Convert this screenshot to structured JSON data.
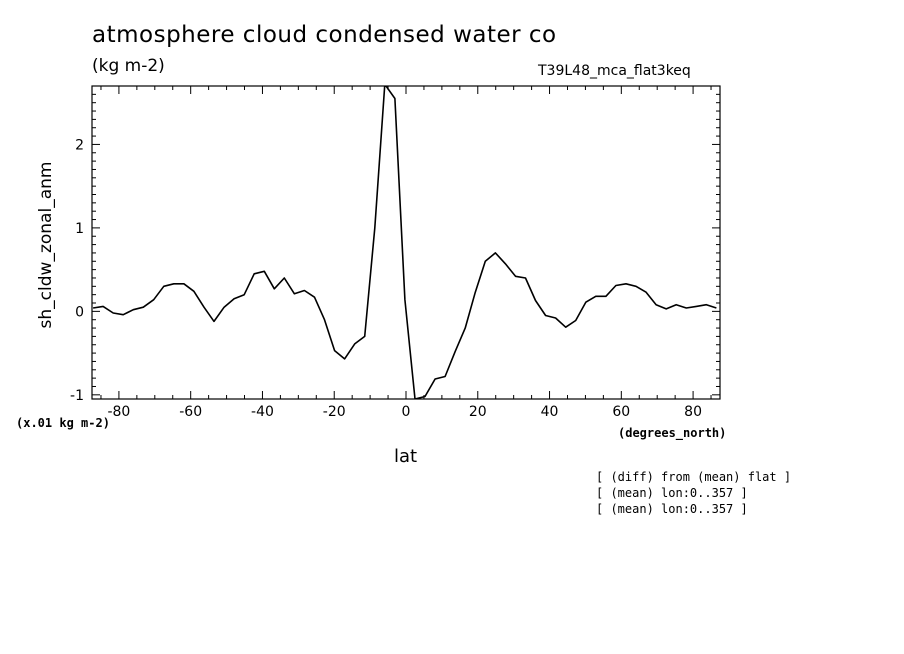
{
  "figure": {
    "title": "atmosphere cloud condensed water co",
    "units": "(kg m-2)",
    "run_id": "T39L48_mca_flat3keq",
    "scale_note": "(x.01 kg m-2)",
    "x_units": "(degrees_north)",
    "notes": [
      "[ (diff) from (mean) flat ]",
      "[ (mean) lon:0..357 ]",
      "[ (mean) lon:0..357 ]"
    ]
  },
  "chart_data": {
    "type": "line",
    "title": "atmosphere cloud condensed water co",
    "xlabel": "lat",
    "ylabel": "sh_cldw_zonal_anm",
    "xlim": [
      -87.5,
      87.5
    ],
    "ylim": [
      -1.05,
      2.7
    ],
    "x_ticks": [
      -80,
      -60,
      -40,
      -20,
      0,
      20,
      40,
      60,
      80
    ],
    "x_tick_labels": [
      "-80",
      "-60",
      "-40",
      "-20",
      "0",
      "20",
      "40",
      "60",
      "80"
    ],
    "y_ticks": [
      -1,
      0,
      1,
      2
    ],
    "y_tick_labels": [
      "-1",
      "0",
      "1",
      "2"
    ],
    "grid": false,
    "series": [
      {
        "color": "#000000",
        "x": [
          -87.2,
          -84.4,
          -81.6,
          -78.8,
          -76.0,
          -73.2,
          -70.3,
          -67.5,
          -64.7,
          -61.9,
          -59.1,
          -56.3,
          -53.5,
          -50.7,
          -47.9,
          -45.1,
          -42.3,
          -39.5,
          -36.7,
          -33.9,
          -31.1,
          -28.3,
          -25.5,
          -22.7,
          -19.9,
          -17.1,
          -14.3,
          -11.5,
          -8.7,
          -5.9,
          -3.1,
          -0.3,
          2.5,
          5.3,
          8.1,
          10.9,
          13.7,
          16.5,
          19.3,
          22.1,
          24.9,
          27.7,
          30.5,
          33.3,
          36.1,
          38.9,
          41.7,
          44.5,
          47.3,
          50.1,
          52.9,
          55.7,
          58.5,
          61.3,
          64.1,
          66.9,
          69.7,
          72.5,
          75.3,
          78.1,
          80.9,
          83.7,
          86.5
        ],
        "y": [
          0.04,
          0.06,
          -0.02,
          -0.04,
          0.02,
          0.05,
          0.14,
          0.3,
          0.33,
          0.33,
          0.24,
          0.05,
          -0.12,
          0.05,
          0.15,
          0.2,
          0.45,
          0.48,
          0.27,
          0.4,
          0.21,
          0.25,
          0.17,
          -0.1,
          -0.47,
          -0.57,
          -0.39,
          -0.3,
          1.0,
          2.72,
          2.55,
          0.14,
          -1.05,
          -1.02,
          -0.81,
          -0.78,
          -0.48,
          -0.2,
          0.23,
          0.6,
          0.7,
          0.57,
          0.42,
          0.4,
          0.13,
          -0.05,
          -0.08,
          -0.19,
          -0.11,
          0.11,
          0.18,
          0.18,
          0.31,
          0.33,
          0.3,
          0.23,
          0.08,
          0.03,
          0.08,
          0.04,
          0.06,
          0.08,
          0.04
        ]
      }
    ]
  }
}
